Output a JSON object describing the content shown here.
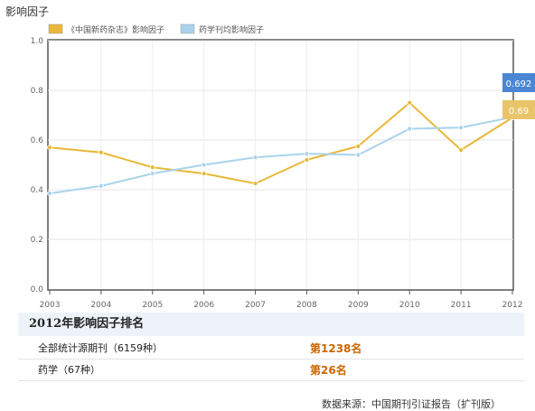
{
  "page_title": "影响因子",
  "chart_data": {
    "type": "line",
    "categories": [
      "2003",
      "2004",
      "2005",
      "2006",
      "2007",
      "2008",
      "2009",
      "2010",
      "2011",
      "2012"
    ],
    "series": [
      {
        "name": "《中国新药杂志》影响因子",
        "color": "#e8b83a",
        "values": [
          0.57,
          0.55,
          0.49,
          0.465,
          0.425,
          0.52,
          0.575,
          0.75,
          0.56,
          0.69
        ]
      },
      {
        "name": "药学刊均影响因子",
        "color": "#a9d3ec",
        "values": [
          0.385,
          0.415,
          0.465,
          0.5,
          0.53,
          0.545,
          0.54,
          0.645,
          0.65,
          0.692
        ]
      }
    ],
    "yticks": [
      "0.0",
      "0.2",
      "0.4",
      "0.6",
      "0.8",
      "1.0"
    ],
    "ylim": [
      0,
      1.0
    ],
    "end_labels": [
      {
        "text": "0.692",
        "color": "#4a86d4"
      },
      {
        "text": "0.69",
        "color": "#e8c46a"
      }
    ],
    "grid": true,
    "legend": "top-left"
  },
  "ranking": {
    "header": "2012年影响因子排名",
    "rows": [
      {
        "label": "全部统计源期刊（6159种）",
        "value": "第1238名"
      },
      {
        "label": "药学（67种）",
        "value": "第26名"
      }
    ]
  },
  "source": "数据来源：中国期刊引证报告（扩刊版）"
}
